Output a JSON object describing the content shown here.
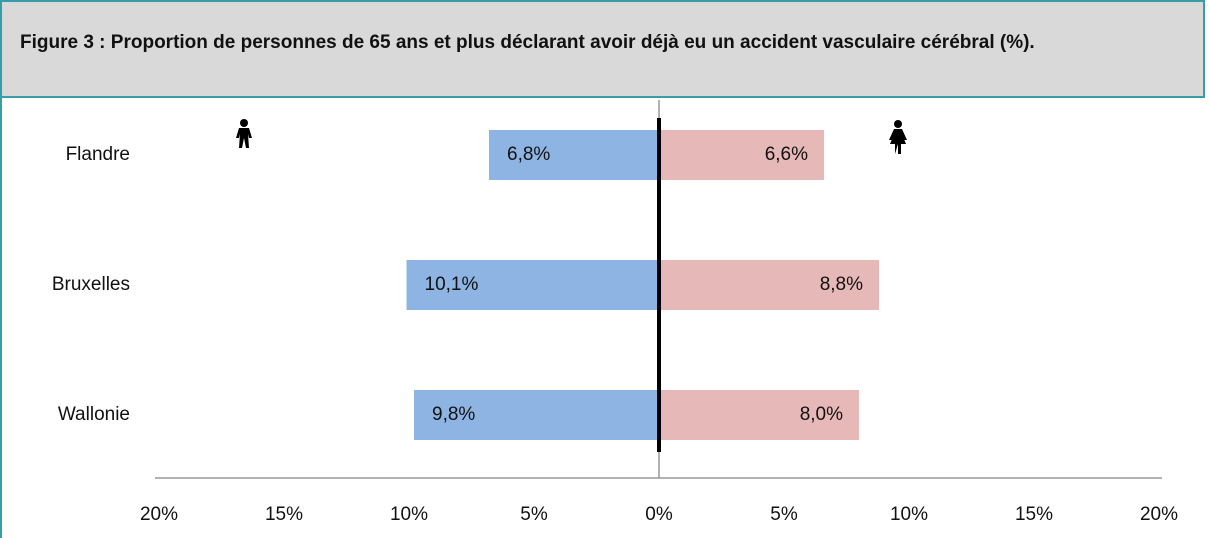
{
  "chart_data": {
    "type": "butterfly-bar",
    "title": "Figure 3 : Proportion de personnes de 65 ans et plus déclarant avoir déjà eu un accident vasculaire cérébral (%).",
    "categories": [
      "Flandre",
      "Bruxelles",
      "Wallonie"
    ],
    "series": [
      {
        "color": "#8eb4e3",
        "values": [
          6.8,
          10.1,
          9.8
        ],
        "value_labels": [
          "6,8%",
          "10,1%",
          "9,8%"
        ]
      },
      {
        "color": "#e6b9b8",
        "values": [
          6.6,
          8.8,
          8.0
        ],
        "value_labels": [
          "6,6%",
          "8,8%",
          "8,0%"
        ]
      }
    ],
    "xlim": [
      -20,
      20
    ],
    "xticks": [
      {
        "value": -20,
        "label": "20%"
      },
      {
        "value": -15,
        "label": "15%"
      },
      {
        "value": -10,
        "label": "10%"
      },
      {
        "value": -5,
        "label": "5%"
      },
      {
        "value": 0,
        "label": "0%"
      },
      {
        "value": 5,
        "label": "5%"
      },
      {
        "value": 10,
        "label": "10%"
      },
      {
        "value": 15,
        "label": "15%"
      },
      {
        "value": 20,
        "label": "20%"
      }
    ]
  }
}
